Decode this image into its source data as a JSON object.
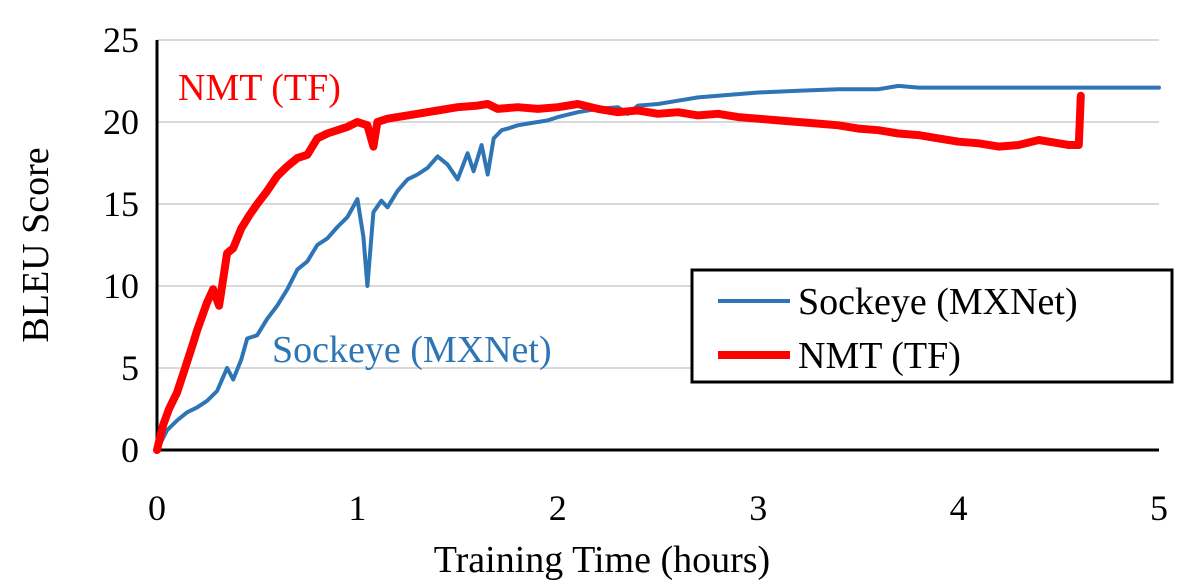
{
  "chart_data": {
    "type": "line",
    "title": "",
    "xlabel": "Training Time (hours)",
    "ylabel": "BLEU Score",
    "xlim": [
      0,
      5
    ],
    "ylim": [
      0,
      25
    ],
    "xticks": [
      "0",
      "1",
      "2",
      "3",
      "4",
      "5"
    ],
    "yticks": [
      "0",
      "5",
      "10",
      "15",
      "20",
      "25"
    ],
    "grid": "horizontal",
    "legend_position": "bottom-right",
    "series": [
      {
        "name": "Sockeye (MXNet)",
        "color": "#2e75b6",
        "x": [
          0,
          0.05,
          0.1,
          0.15,
          0.2,
          0.25,
          0.3,
          0.35,
          0.38,
          0.42,
          0.45,
          0.5,
          0.55,
          0.6,
          0.65,
          0.7,
          0.75,
          0.8,
          0.85,
          0.9,
          0.95,
          1.0,
          1.03,
          1.05,
          1.08,
          1.12,
          1.15,
          1.2,
          1.25,
          1.3,
          1.35,
          1.4,
          1.45,
          1.5,
          1.55,
          1.58,
          1.62,
          1.65,
          1.68,
          1.72,
          1.75,
          1.8,
          1.85,
          1.9,
          1.95,
          2.0,
          2.1,
          2.2,
          2.3,
          2.35,
          2.4,
          2.5,
          2.6,
          2.7,
          2.8,
          2.9,
          3.0,
          3.2,
          3.4,
          3.6,
          3.7,
          3.8,
          4.0,
          4.2,
          4.5,
          4.8,
          5.0
        ],
        "y": [
          0,
          1.2,
          1.8,
          2.3,
          2.6,
          3.0,
          3.6,
          5.0,
          4.3,
          5.5,
          6.8,
          7.0,
          8.0,
          8.8,
          9.8,
          11.0,
          11.5,
          12.5,
          12.9,
          13.6,
          14.2,
          15.3,
          13.0,
          10.0,
          14.5,
          15.2,
          14.8,
          15.8,
          16.5,
          16.8,
          17.2,
          17.9,
          17.4,
          16.5,
          18.1,
          17.0,
          18.6,
          16.8,
          19.0,
          19.5,
          19.6,
          19.8,
          19.9,
          20.0,
          20.1,
          20.3,
          20.6,
          20.8,
          20.9,
          20.5,
          21.0,
          21.1,
          21.3,
          21.5,
          21.6,
          21.7,
          21.8,
          21.9,
          22.0,
          22.0,
          22.2,
          22.1,
          22.1,
          22.1,
          22.1,
          22.1,
          22.1
        ]
      },
      {
        "name": "NMT (TF)",
        "color": "#ff0000",
        "x": [
          0,
          0.03,
          0.06,
          0.1,
          0.14,
          0.18,
          0.2,
          0.25,
          0.28,
          0.31,
          0.35,
          0.38,
          0.42,
          0.46,
          0.5,
          0.55,
          0.6,
          0.65,
          0.7,
          0.75,
          0.8,
          0.85,
          0.9,
          0.95,
          1.0,
          1.05,
          1.08,
          1.1,
          1.15,
          1.2,
          1.3,
          1.4,
          1.5,
          1.6,
          1.65,
          1.7,
          1.8,
          1.9,
          2.0,
          2.1,
          2.2,
          2.3,
          2.4,
          2.5,
          2.6,
          2.7,
          2.8,
          2.9,
          3.0,
          3.1,
          3.2,
          3.3,
          3.4,
          3.5,
          3.6,
          3.7,
          3.8,
          3.9,
          4.0,
          4.1,
          4.2,
          4.3,
          4.4,
          4.5,
          4.55,
          4.6,
          4.61
        ],
        "y": [
          0,
          1.5,
          2.5,
          3.5,
          5.0,
          6.5,
          7.3,
          9.0,
          9.8,
          8.8,
          12.0,
          12.3,
          13.5,
          14.3,
          15.0,
          15.8,
          16.7,
          17.3,
          17.8,
          18.0,
          19.0,
          19.3,
          19.5,
          19.7,
          20.0,
          19.8,
          18.5,
          20.0,
          20.2,
          20.3,
          20.5,
          20.7,
          20.9,
          21.0,
          21.1,
          20.8,
          20.9,
          20.8,
          20.9,
          21.1,
          20.8,
          20.6,
          20.7,
          20.5,
          20.6,
          20.4,
          20.5,
          20.3,
          20.2,
          20.1,
          20.0,
          19.9,
          19.8,
          19.6,
          19.5,
          19.3,
          19.2,
          19.0,
          18.8,
          18.7,
          18.5,
          18.6,
          18.9,
          18.7,
          18.6,
          18.6,
          21.6
        ]
      }
    ],
    "annotations": [
      {
        "text": "NMT (TF)",
        "color": "#ff0000"
      },
      {
        "text": "Sockeye (MXNet)",
        "color": "#2e75b6"
      }
    ]
  }
}
